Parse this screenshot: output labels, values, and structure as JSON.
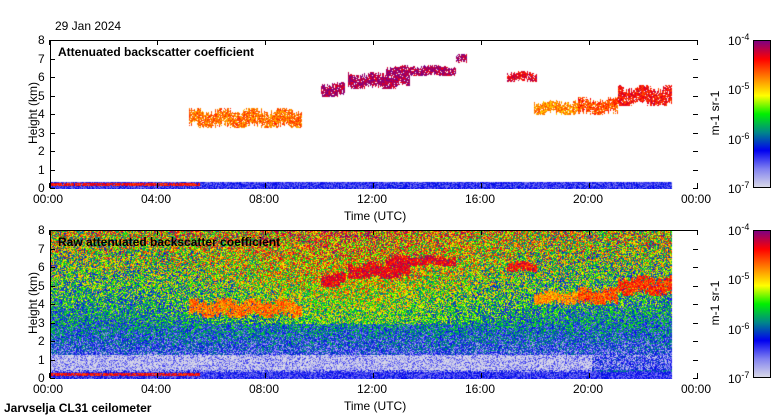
{
  "date": "29 Jan 2024",
  "footer": "Jarvselja CL31 ceilometer",
  "colorbar": {
    "unit_label": "m-1 sr-1",
    "ticks": [
      {
        "base": "10",
        "exp": "-4",
        "v": -4
      },
      {
        "base": "10",
        "exp": "-5",
        "v": -5
      },
      {
        "base": "10",
        "exp": "-6",
        "v": -6
      },
      {
        "base": "10",
        "exp": "-7",
        "v": -7
      }
    ],
    "colors": [
      "#d8d8e8",
      "#8080f0",
      "#0000f0",
      "#008888",
      "#00f000",
      "#ffff00",
      "#ff8000",
      "#ff0000",
      "#800080"
    ]
  },
  "chart_data": [
    {
      "type": "heatmap",
      "title": "Attenuated backscatter coefficient",
      "xlabel": "Time (UTC)",
      "ylabel": "Height (km)",
      "xlim": [
        0,
        24
      ],
      "ylim": [
        0,
        8
      ],
      "xticks": [
        "00:00",
        "04:00",
        "08:00",
        "12:00",
        "16:00",
        "20:00",
        "00:00"
      ],
      "yticks": [
        "0",
        "1",
        "2",
        "3",
        "4",
        "5",
        "6",
        "7",
        "8"
      ],
      "clim_log10": [
        -7,
        -4
      ],
      "noise": false,
      "layers": [
        {
          "name": "surface-layer",
          "t": [
            0,
            23
          ],
          "h": [
            0,
            0.4
          ],
          "v": -6.4
        },
        {
          "name": "aerosol-band",
          "t": [
            0,
            5.5
          ],
          "h": [
            0.18,
            0.32
          ],
          "v": -4.4
        },
        {
          "name": "cloud",
          "t": [
            5.1,
            9.3
          ],
          "h": [
            3.3,
            4.4
          ],
          "v": -4.7
        },
        {
          "name": "cloud",
          "t": [
            10.0,
            10.9
          ],
          "h": [
            5.0,
            5.8
          ],
          "v": -4.1
        },
        {
          "name": "cloud",
          "t": [
            11.0,
            13.3
          ],
          "h": [
            5.4,
            6.3
          ],
          "v": -4.1
        },
        {
          "name": "cloud",
          "t": [
            12.4,
            15.0
          ],
          "h": [
            6.1,
            6.7
          ],
          "v": -4.1
        },
        {
          "name": "cloud",
          "t": [
            15.0,
            15.4
          ],
          "h": [
            6.8,
            7.3
          ],
          "v": -4.1
        },
        {
          "name": "cloud",
          "t": [
            16.9,
            18.0
          ],
          "h": [
            5.8,
            6.4
          ],
          "v": -4.3
        },
        {
          "name": "cloud",
          "t": [
            17.9,
            19.6
          ],
          "h": [
            4.0,
            4.8
          ],
          "v": -4.8
        },
        {
          "name": "cloud",
          "t": [
            19.5,
            21.0
          ],
          "h": [
            4.0,
            5.0
          ],
          "v": -4.6
        },
        {
          "name": "cloud",
          "t": [
            21.0,
            23.0
          ],
          "h": [
            4.5,
            5.6
          ],
          "v": -4.4
        }
      ]
    },
    {
      "type": "heatmap",
      "title": "Raw attenuated backscatter coefficient",
      "xlabel": "Time (UTC)",
      "ylabel": "Height (km)",
      "xlim": [
        0,
        24
      ],
      "ylim": [
        0,
        8
      ],
      "xticks": [
        "00:00",
        "04:00",
        "08:00",
        "12:00",
        "16:00",
        "20:00",
        "00:00"
      ],
      "yticks": [
        "0",
        "1",
        "2",
        "3",
        "4",
        "5",
        "6",
        "7",
        "8"
      ],
      "clim_log10": [
        -7,
        -4
      ],
      "noise": true,
      "layers": [
        {
          "name": "surface-layer",
          "t": [
            0,
            23
          ],
          "h": [
            0,
            0.4
          ],
          "v": -6.4
        },
        {
          "name": "aerosol-band",
          "t": [
            0,
            5.5
          ],
          "h": [
            0.18,
            0.32
          ],
          "v": -4.4
        },
        {
          "name": "cloud",
          "t": [
            5.1,
            9.3
          ],
          "h": [
            3.3,
            4.4
          ],
          "v": -4.7
        },
        {
          "name": "cloud",
          "t": [
            10.0,
            10.9
          ],
          "h": [
            5.0,
            5.8
          ],
          "v": -4.3
        },
        {
          "name": "cloud",
          "t": [
            11.0,
            13.3
          ],
          "h": [
            5.4,
            6.3
          ],
          "v": -4.3
        },
        {
          "name": "cloud",
          "t": [
            12.4,
            15.0
          ],
          "h": [
            6.1,
            6.7
          ],
          "v": -4.3
        },
        {
          "name": "cloud",
          "t": [
            16.9,
            18.0
          ],
          "h": [
            5.8,
            6.4
          ],
          "v": -4.4
        },
        {
          "name": "cloud",
          "t": [
            17.9,
            19.6
          ],
          "h": [
            4.0,
            4.8
          ],
          "v": -4.8
        },
        {
          "name": "cloud",
          "t": [
            19.5,
            21.0
          ],
          "h": [
            4.0,
            5.0
          ],
          "v": -4.6
        },
        {
          "name": "cloud",
          "t": [
            21.0,
            23.0
          ],
          "h": [
            4.5,
            5.6
          ],
          "v": -4.5
        }
      ]
    }
  ]
}
